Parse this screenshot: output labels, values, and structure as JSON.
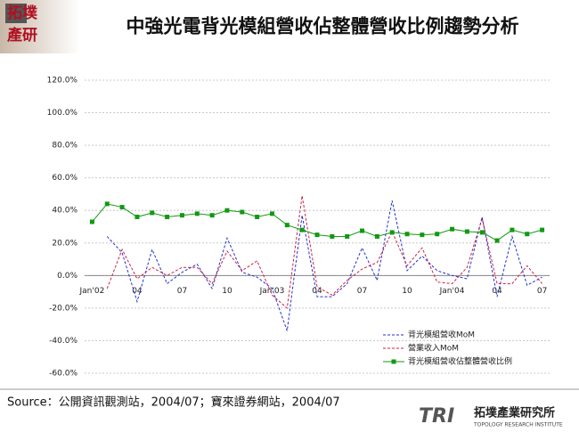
{
  "logo": {
    "top": "拓墣",
    "bottom": "產研"
  },
  "footer": {
    "source": "Source：公開資訊觀測站，2004/07；寶來證券網站，2004/07",
    "brand_mark": "TRI",
    "brand_name": "拓墣產業研究所",
    "brand_en": "TOPOLOGY RESEARCH INSTITUTE"
  },
  "chart_data": {
    "type": "line",
    "title": "中強光電背光模組營收佔整體營收比例趨勢分析",
    "categories": [
      "Jan'02",
      null,
      null,
      "04",
      null,
      null,
      "07",
      null,
      null,
      "10",
      null,
      null,
      "Jan'03",
      null,
      null,
      "04",
      null,
      null,
      "07",
      null,
      null,
      "10",
      null,
      null,
      "Jan'04",
      null,
      null,
      "04",
      null,
      null,
      "07"
    ],
    "ylim": [
      -60,
      120
    ],
    "yticks": [
      {
        "value": -60,
        "label": "-60.0%"
      },
      {
        "value": -40,
        "label": "-40.0%"
      },
      {
        "value": -20,
        "label": "-20.0%"
      },
      {
        "value": 0,
        "label": "0.0%"
      },
      {
        "value": 20,
        "label": "20.0%"
      },
      {
        "value": 40,
        "label": "40.0%"
      },
      {
        "value": 60,
        "label": "60.0%"
      },
      {
        "value": 80,
        "label": "80.0%"
      },
      {
        "value": 100,
        "label": "100.0%"
      },
      {
        "value": 120,
        "label": "120.0%"
      }
    ],
    "grid": true,
    "legend": "lower right",
    "series": [
      {
        "name": "背光模組營收MoM",
        "color": "#2233cc",
        "dashed": true,
        "marker": false,
        "values": [
          null,
          24,
          14,
          -16,
          16,
          -5,
          2,
          7,
          -8,
          23,
          2,
          -1,
          -8,
          -34,
          37,
          -13,
          -13,
          -5,
          17,
          -3,
          46,
          3,
          12,
          3,
          0,
          -2,
          36,
          -13,
          24,
          -6,
          -1
        ]
      },
      {
        "name": "營業收入MoM",
        "color": "#cc2244",
        "dashed": true,
        "marker": false,
        "values": [
          null,
          -8,
          16,
          -2,
          5,
          0,
          5,
          5,
          -5,
          15,
          3,
          9,
          -12,
          -20,
          49,
          -7,
          -12,
          -3,
          4,
          8,
          27,
          6,
          17,
          -4,
          -5,
          5,
          35,
          -5,
          -5,
          6,
          -5
        ]
      },
      {
        "name": "背光模組營收佔整體營收比例",
        "color": "#119911",
        "dashed": false,
        "marker": true,
        "values": [
          33,
          44,
          42,
          36,
          38.5,
          36,
          37,
          38,
          37,
          40,
          39,
          36,
          38,
          31,
          28,
          25,
          24,
          24,
          27.5,
          24,
          26.5,
          25.5,
          25,
          25.5,
          28.5,
          27,
          26.5,
          21.5,
          28,
          25.5,
          28
        ]
      }
    ]
  }
}
